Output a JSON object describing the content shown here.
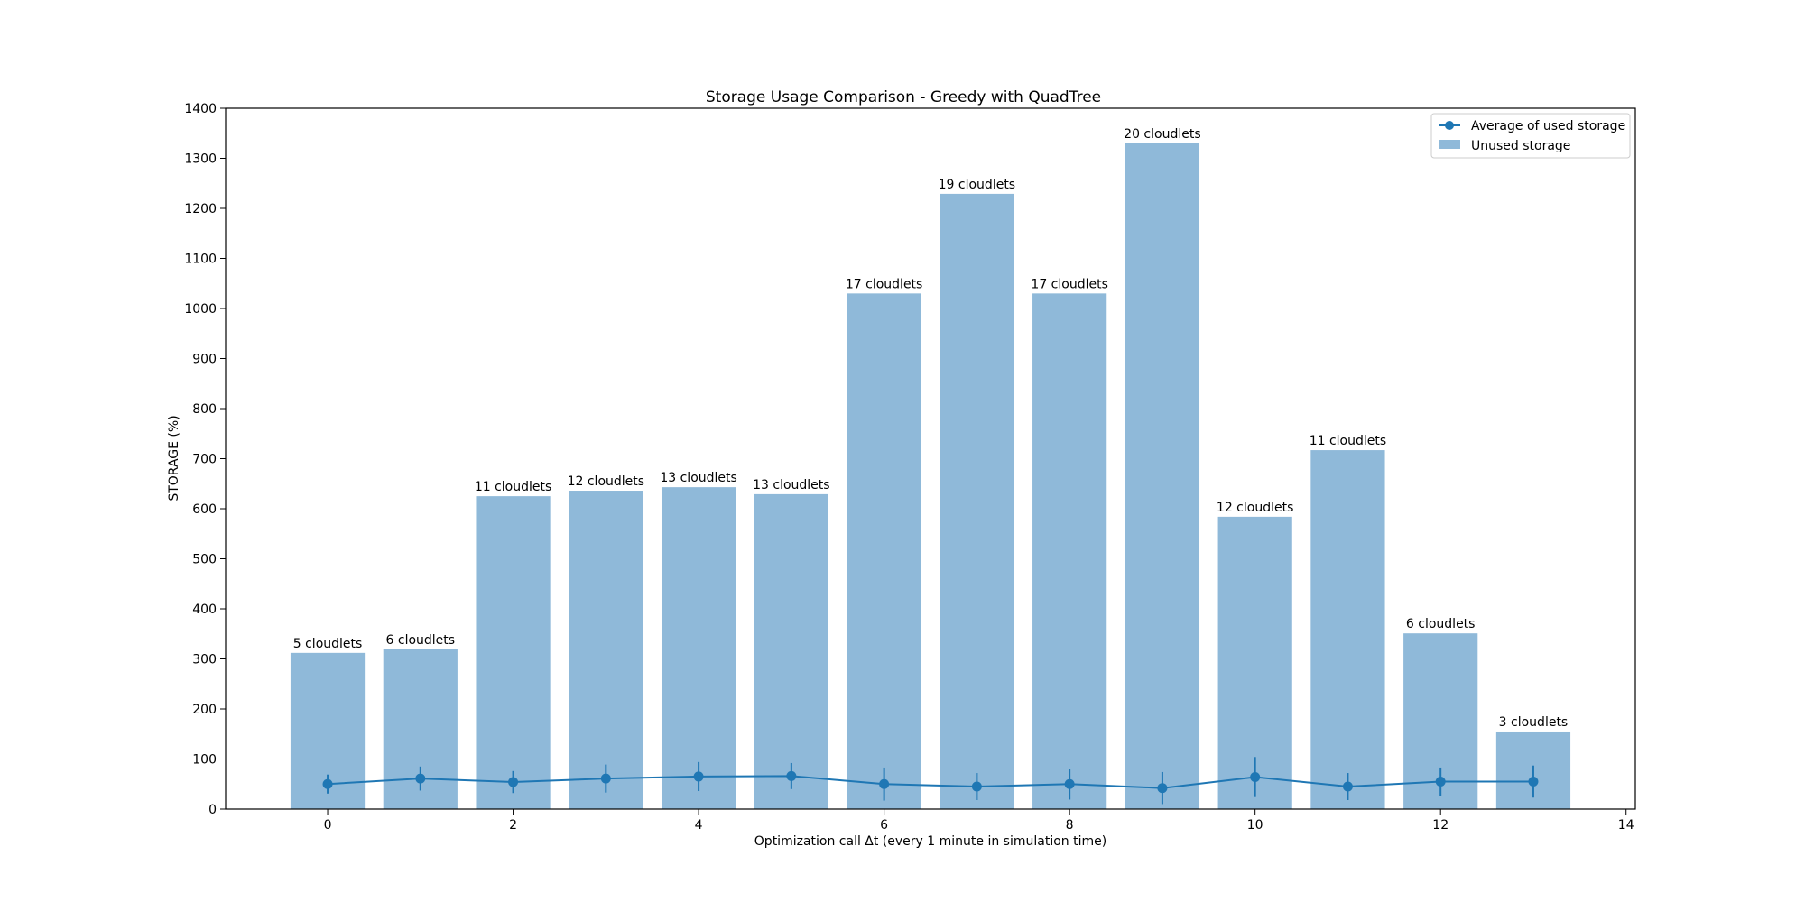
{
  "chart_data": {
    "type": "bar",
    "title": "Storage Usage Comparison - Greedy with QuadTree",
    "xlabel": "Optimization call Δt (every 1 minute in simulation time)",
    "ylabel": "STORAGE (%)",
    "xlim": [
      -1.1,
      14.1
    ],
    "ylim": [
      0,
      1400
    ],
    "x_ticks": [
      0,
      2,
      4,
      6,
      8,
      10,
      12,
      14
    ],
    "y_ticks": [
      0,
      100,
      200,
      300,
      400,
      500,
      600,
      700,
      800,
      900,
      1000,
      1100,
      1200,
      1300,
      1400
    ],
    "x": [
      0,
      1,
      2,
      3,
      4,
      5,
      6,
      7,
      8,
      9,
      10,
      11,
      12,
      13
    ],
    "bar_labels": [
      "5 cloudlets",
      "6 cloudlets",
      "11 cloudlets",
      "12 cloudlets",
      "13 cloudlets",
      "13 cloudlets",
      "17 cloudlets",
      "19 cloudlets",
      "17 cloudlets",
      "20 cloudlets",
      "12 cloudlets",
      "11 cloudlets",
      "6 cloudlets",
      "3 cloudlets"
    ],
    "grid": false,
    "legend_position": "top-right",
    "series": [
      {
        "name": "Average of used storage",
        "kind": "line-errorbar",
        "color": "#1f77b4",
        "values": [
          50,
          61,
          54,
          61,
          65,
          66,
          50,
          45,
          50,
          42,
          64,
          45,
          55,
          55
        ],
        "error": [
          19,
          24,
          22,
          28,
          29,
          26,
          33,
          27,
          31,
          32,
          40,
          27,
          28,
          32
        ]
      },
      {
        "name": "Unused storage",
        "kind": "bar",
        "color": "#8fb9d9",
        "values": [
          312,
          319,
          625,
          636,
          643,
          629,
          1030,
          1229,
          1030,
          1330,
          584,
          717,
          351,
          155
        ]
      }
    ]
  }
}
